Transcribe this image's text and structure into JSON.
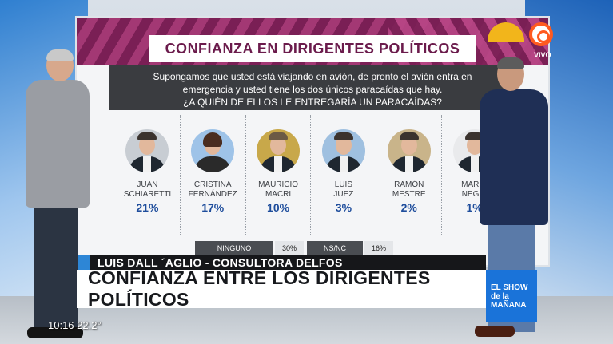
{
  "board": {
    "title": "CONFIANZA EN DIRIGENTES POLÍTICOS",
    "question_line1": "Supongamos que usted está viajando en avión, de pronto el avión entra en",
    "question_line2": "emergencia y usted tiene los dos únicos paracaídas que hay.",
    "question_line3": "¿A QUIÉN DE ELLOS LE ENTREGARÍA UN PARACAÍDAS?",
    "candidates": [
      {
        "first": "JUAN",
        "last": "SCHIARETTI",
        "pct": "21%"
      },
      {
        "first": "CRISTINA",
        "last": "FERNÁNDEZ",
        "pct": "17%"
      },
      {
        "first": "MAURICIO",
        "last": "MACRI",
        "pct": "10%"
      },
      {
        "first": "LUIS",
        "last": "JUEZ",
        "pct": "3%"
      },
      {
        "first": "RAMÓN",
        "last": "MESTRE",
        "pct": "2%"
      },
      {
        "first": "MARIO",
        "last": "NEGRI",
        "pct": "1%"
      }
    ],
    "ninguno_label": "NINGUNO",
    "ninguno_value": "30%",
    "nsnc_label": "NS/NC",
    "nsnc_value": "16%"
  },
  "channel": {
    "vivo": "VIVO"
  },
  "lower_third": {
    "source": "LUIS DALL ´AGLIO - CONSULTORA DELFOS",
    "headline": "CONFIANZA ENTRE LOS DIRIGENTES POLÍTICOS",
    "show_line1": "EL SHOW",
    "show_line2": "de la",
    "show_line3": "MAÑANA"
  },
  "clock": "10:16 22.2°"
}
